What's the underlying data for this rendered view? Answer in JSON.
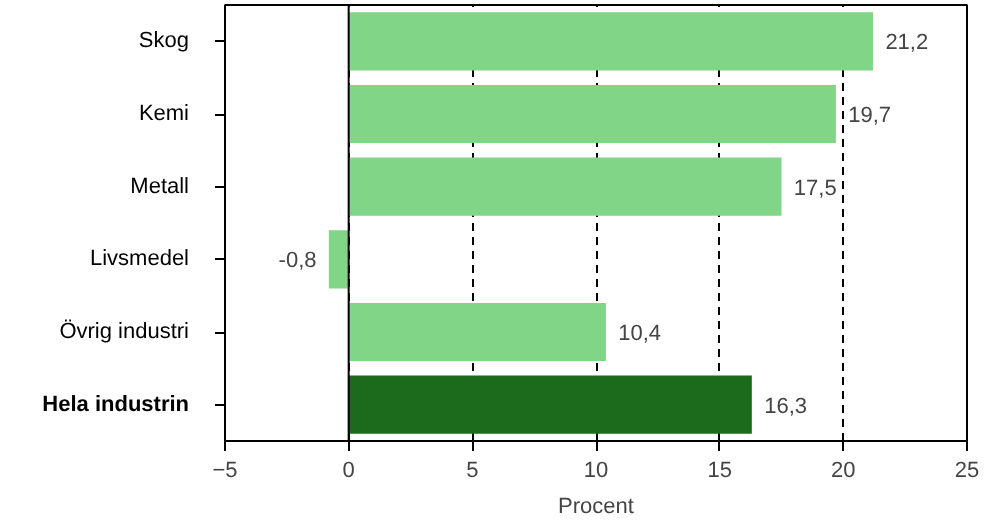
{
  "chart_data": {
    "type": "bar",
    "orientation": "horizontal",
    "xlabel": "Procent",
    "categories": [
      "Skog",
      "Kemi",
      "Metall",
      "Livsmedel",
      "Övrig industri",
      "Hela industrin"
    ],
    "values": [
      21.2,
      19.7,
      17.5,
      -0.8,
      10.4,
      16.3
    ],
    "colors": [
      "#80d686",
      "#80d686",
      "#80d686",
      "#80d686",
      "#80d686",
      "#1c6b1c"
    ],
    "value_labels": [
      "21,2",
      "19,7",
      "17,5",
      "-0,8",
      "10,4",
      "16,3"
    ],
    "xlim": [
      -5,
      25
    ],
    "xticks": [
      -5,
      0,
      5,
      10,
      15,
      20,
      25
    ],
    "grid": "x",
    "legend": false
  }
}
